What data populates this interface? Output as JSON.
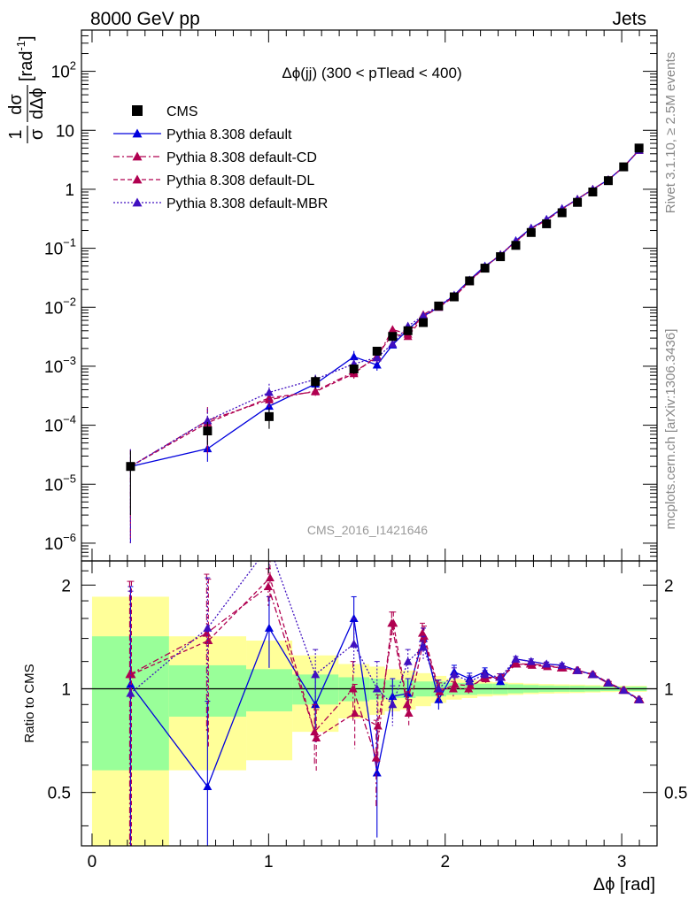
{
  "header": {
    "left": "8000 GeV pp",
    "right": "Jets"
  },
  "side_labels": {
    "rivet": "Rivet 3.1.10, ≥ 2.5M events",
    "mcplots": "mcplots.cern.ch [arXiv:1306.3436]"
  },
  "chart_data": {
    "type": "scatter",
    "title": "Δϕ(jj) (300 < pTlead <  400)",
    "watermark": "CMS_2016_I1421646",
    "xlabel": "Δϕ [rad]",
    "ylabel": "1/σ dσ/dΔϕ [rad⁻¹]",
    "ylabel_parts": {
      "num": "1",
      "den": "σ",
      "dnum": "dσ",
      "dden": "dΔϕ",
      "unit": "[rad",
      "unit_sup": "-1",
      "unit_close": "]"
    },
    "ratio_ylabel": "Ratio to CMS",
    "xlim": [
      -0.06,
      3.2
    ],
    "ylim": [
      5e-07,
      500
    ],
    "yscale": "log",
    "ratio_ylim": [
      0.35,
      2.35
    ],
    "x_ticks": [
      {
        "v": 0,
        "label": "0"
      },
      {
        "v": 1,
        "label": "1"
      },
      {
        "v": 2,
        "label": "2"
      },
      {
        "v": 3,
        "label": "3"
      }
    ],
    "y_ticks": [
      {
        "v": 1e-06,
        "m": "10",
        "e": "−6"
      },
      {
        "v": 1e-05,
        "m": "10",
        "e": "−5"
      },
      {
        "v": 0.0001,
        "m": "10",
        "e": "−4"
      },
      {
        "v": 0.001,
        "m": "10",
        "e": "−3"
      },
      {
        "v": 0.01,
        "m": "10",
        "e": "−2"
      },
      {
        "v": 0.1,
        "m": "10",
        "e": "−1"
      },
      {
        "v": 1,
        "m": "1",
        "e": ""
      },
      {
        "v": 10,
        "m": "10",
        "e": ""
      },
      {
        "v": 100,
        "m": "10",
        "e": "2"
      }
    ],
    "ratio_ticks": [
      {
        "v": 0.5,
        "label": "0.5"
      },
      {
        "v": 1,
        "label": "1"
      },
      {
        "v": 2,
        "label": "2"
      }
    ],
    "legend_position": "top-left",
    "legend": [
      {
        "label": "CMS",
        "color": "#000000",
        "dash": "",
        "marker": "square"
      },
      {
        "label": "Pythia 8.308 default",
        "color": "#0000dd",
        "dash": "",
        "marker": "triangle"
      },
      {
        "label": "Pythia 8.308 default-CD",
        "color": "#b00050",
        "dash": "7,3,2,3",
        "marker": "triangle"
      },
      {
        "label": "Pythia 8.308 default-DL",
        "color": "#b00050",
        "dash": "5,3",
        "marker": "triangle"
      },
      {
        "label": "Pythia 8.308 default-MBR",
        "color": "#4010c0",
        "dash": "2,2",
        "marker": "triangle"
      }
    ],
    "bins": [
      [
        0.0,
        0.436
      ],
      [
        0.436,
        0.873
      ],
      [
        0.873,
        1.134
      ],
      [
        1.134,
        1.396
      ],
      [
        1.396,
        1.571
      ],
      [
        1.571,
        1.658
      ],
      [
        1.658,
        1.745
      ],
      [
        1.745,
        1.833
      ],
      [
        1.833,
        1.92
      ],
      [
        1.92,
        2.007
      ],
      [
        2.007,
        2.094
      ],
      [
        2.094,
        2.182
      ],
      [
        2.182,
        2.269
      ],
      [
        2.269,
        2.356
      ],
      [
        2.356,
        2.443
      ],
      [
        2.443,
        2.531
      ],
      [
        2.531,
        2.618
      ],
      [
        2.618,
        2.705
      ],
      [
        2.705,
        2.793
      ],
      [
        2.793,
        2.88
      ],
      [
        2.88,
        2.967
      ],
      [
        2.967,
        3.054
      ],
      [
        3.054,
        3.142
      ]
    ],
    "x": [
      0.218,
      0.654,
      1.003,
      1.265,
      1.483,
      1.614,
      1.702,
      1.789,
      1.876,
      1.963,
      2.051,
      2.138,
      2.225,
      2.313,
      2.4,
      2.487,
      2.574,
      2.662,
      2.749,
      2.836,
      2.924,
      3.011,
      3.098
    ],
    "data_values": [
      2e-05,
      8e-05,
      0.00014,
      0.00055,
      0.0009,
      0.0018,
      0.0032,
      0.004,
      0.0055,
      0.0105,
      0.015,
      0.028,
      0.046,
      0.072,
      0.112,
      0.185,
      0.26,
      0.4,
      0.6,
      0.9,
      1.4,
      2.4,
      5.0
    ],
    "data_band_green": [
      0.42,
      0.17,
      0.14,
      0.1,
      0.08,
      0.07,
      0.06,
      0.06,
      0.05,
      0.05,
      0.04,
      0.04,
      0.035,
      0.035,
      0.03,
      0.025,
      0.022,
      0.02,
      0.02,
      0.018,
      0.015,
      0.015,
      0.015
    ],
    "data_band_yellow": [
      0.85,
      0.42,
      0.38,
      0.25,
      0.18,
      0.16,
      0.14,
      0.13,
      0.11,
      0.09,
      0.07,
      0.06,
      0.05,
      0.045,
      0.04,
      0.035,
      0.032,
      0.03,
      0.028,
      0.025,
      0.022,
      0.02,
      0.02
    ],
    "series": [
      {
        "name": "Pythia 8.308 default",
        "color": "#0000dd",
        "dash": "",
        "values": [
          2e-05,
          4e-05,
          0.00021,
          0.0005,
          0.00145,
          0.00105,
          0.0023,
          0.0042,
          0.007,
          0.01,
          0.016,
          0.029,
          0.05,
          0.075,
          0.135,
          0.22,
          0.31,
          0.47,
          0.68,
          1.0,
          1.45,
          2.4,
          4.6
        ],
        "ratio": [
          1.03,
          0.52,
          1.5,
          0.9,
          1.6,
          0.57,
          0.95,
          0.97,
          1.4,
          0.93,
          1.12,
          1.07,
          1.12,
          1.05,
          1.22,
          1.2,
          1.18,
          1.17,
          1.13,
          1.1,
          1.04,
          0.99,
          0.93
        ],
        "ratio_err": [
          0.95,
          0.4,
          0.35,
          0.2,
          0.25,
          0.2,
          0.12,
          0.1,
          0.1,
          0.06,
          0.05,
          0.04,
          0.03,
          0.025,
          0.02,
          0.02,
          0.015,
          0.015,
          0.012,
          0.01,
          0.01,
          0.008,
          0.008
        ],
        "ratio_x_offset": 0
      },
      {
        "name": "Pythia 8.308 default-CD",
        "color": "#b00050",
        "dash": "7,3,2,3",
        "values": [
          2e-05,
          0.00012,
          0.00027,
          0.00038,
          0.0008,
          0.0014,
          0.0042,
          0.0035,
          0.0075,
          0.0105,
          0.015,
          0.027,
          0.048,
          0.078,
          0.13,
          0.215,
          0.3,
          0.46,
          0.68,
          1.0,
          1.45,
          2.4,
          4.6
        ],
        "ratio": [
          1.1,
          1.45,
          1.98,
          0.75,
          1.0,
          0.63,
          1.55,
          0.9,
          1.45,
          1.0,
          1.0,
          1.0,
          1.08,
          1.08,
          1.18,
          1.18,
          1.17,
          1.15,
          1.13,
          1.1,
          1.04,
          0.99,
          0.93
        ],
        "ratio_err": [
          0.95,
          0.7,
          0.25,
          0.15,
          0.2,
          0.18,
          0.12,
          0.08,
          0.1,
          0.06,
          0.05,
          0.04,
          0.03,
          0.025,
          0.02,
          0.02,
          0.015,
          0.015,
          0.012,
          0.01,
          0.01,
          0.008,
          0.008
        ],
        "ratio_x_offset": -0.005
      },
      {
        "name": "Pythia 8.308 default-DL",
        "color": "#b00050",
        "dash": "5,3",
        "values": [
          2e-05,
          0.00011,
          0.00029,
          0.00037,
          0.00075,
          0.0015,
          0.0035,
          0.0032,
          0.0068,
          0.01,
          0.015,
          0.028,
          0.048,
          0.078,
          0.128,
          0.215,
          0.3,
          0.46,
          0.68,
          1.0,
          1.45,
          2.4,
          4.6
        ],
        "ratio": [
          1.1,
          1.38,
          2.1,
          0.72,
          0.85,
          0.78,
          1.55,
          0.85,
          1.42,
          0.98,
          1.03,
          1.02,
          1.07,
          1.08,
          1.18,
          1.17,
          1.16,
          1.15,
          1.13,
          1.1,
          1.04,
          0.99,
          0.93
        ],
        "ratio_err": [
          0.95,
          0.7,
          0.3,
          0.15,
          0.18,
          0.18,
          0.12,
          0.08,
          0.1,
          0.06,
          0.05,
          0.04,
          0.03,
          0.025,
          0.02,
          0.02,
          0.015,
          0.015,
          0.012,
          0.01,
          0.01,
          0.008,
          0.008
        ],
        "ratio_x_offset": 0.005
      },
      {
        "name": "Pythia 8.308 default-MBR",
        "color": "#4010c0",
        "dash": "2,2",
        "values": [
          2e-05,
          0.00012,
          0.00036,
          0.0006,
          0.0011,
          0.0014,
          0.0024,
          0.0048,
          0.0072,
          0.0105,
          0.016,
          0.029,
          0.048,
          0.078,
          0.132,
          0.22,
          0.31,
          0.47,
          0.68,
          1.0,
          1.45,
          2.4,
          4.6
        ],
        "ratio": [
          0.97,
          1.5,
          2.6,
          1.1,
          1.35,
          1.0,
          0.9,
          1.2,
          1.32,
          1.0,
          1.1,
          1.05,
          1.1,
          1.08,
          1.22,
          1.2,
          1.18,
          1.17,
          1.13,
          1.1,
          1.04,
          0.99,
          0.93
        ],
        "ratio_err": [
          0.95,
          0.6,
          0.4,
          0.2,
          0.25,
          0.2,
          0.12,
          0.1,
          0.1,
          0.06,
          0.05,
          0.04,
          0.03,
          0.025,
          0.02,
          0.02,
          0.015,
          0.015,
          0.012,
          0.01,
          0.01,
          0.008,
          0.008
        ],
        "ratio_x_offset": 0
      }
    ]
  }
}
